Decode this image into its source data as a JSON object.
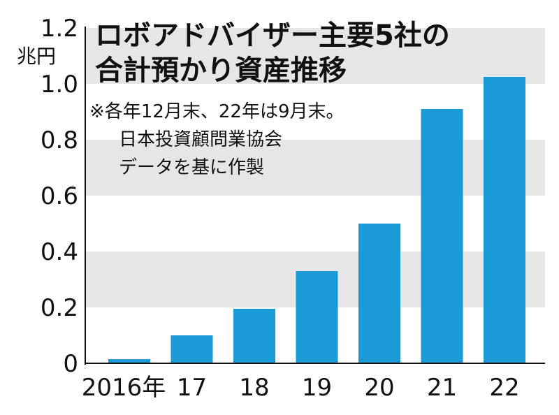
{
  "chart_data": {
    "type": "bar",
    "title": "ロボアドバイザー主要5社の合計預かり資産推移",
    "title_lines": [
      "ロボアドバイザー主要5社の",
      "合計預かり資産推移"
    ],
    "note_lines": [
      "※各年12月末、22年は9月末。",
      "日本投資顧問業協会",
      "データを基に作製"
    ],
    "ylabel": "兆円",
    "categories": [
      "2016年",
      "17",
      "18",
      "19",
      "20",
      "21",
      "22"
    ],
    "values": [
      0.015,
      0.1,
      0.195,
      0.33,
      0.5,
      0.91,
      1.025
    ],
    "ylim": [
      0,
      1.2
    ],
    "yticks": [
      "0",
      "0.2",
      "0.4",
      "0.6",
      "0.8",
      "1.0",
      "1.2"
    ],
    "grid": "alternating horizontal bands",
    "colors": {
      "bar": "#1a9ad6",
      "band": "#e6e6e6",
      "axis": "#111111"
    }
  }
}
